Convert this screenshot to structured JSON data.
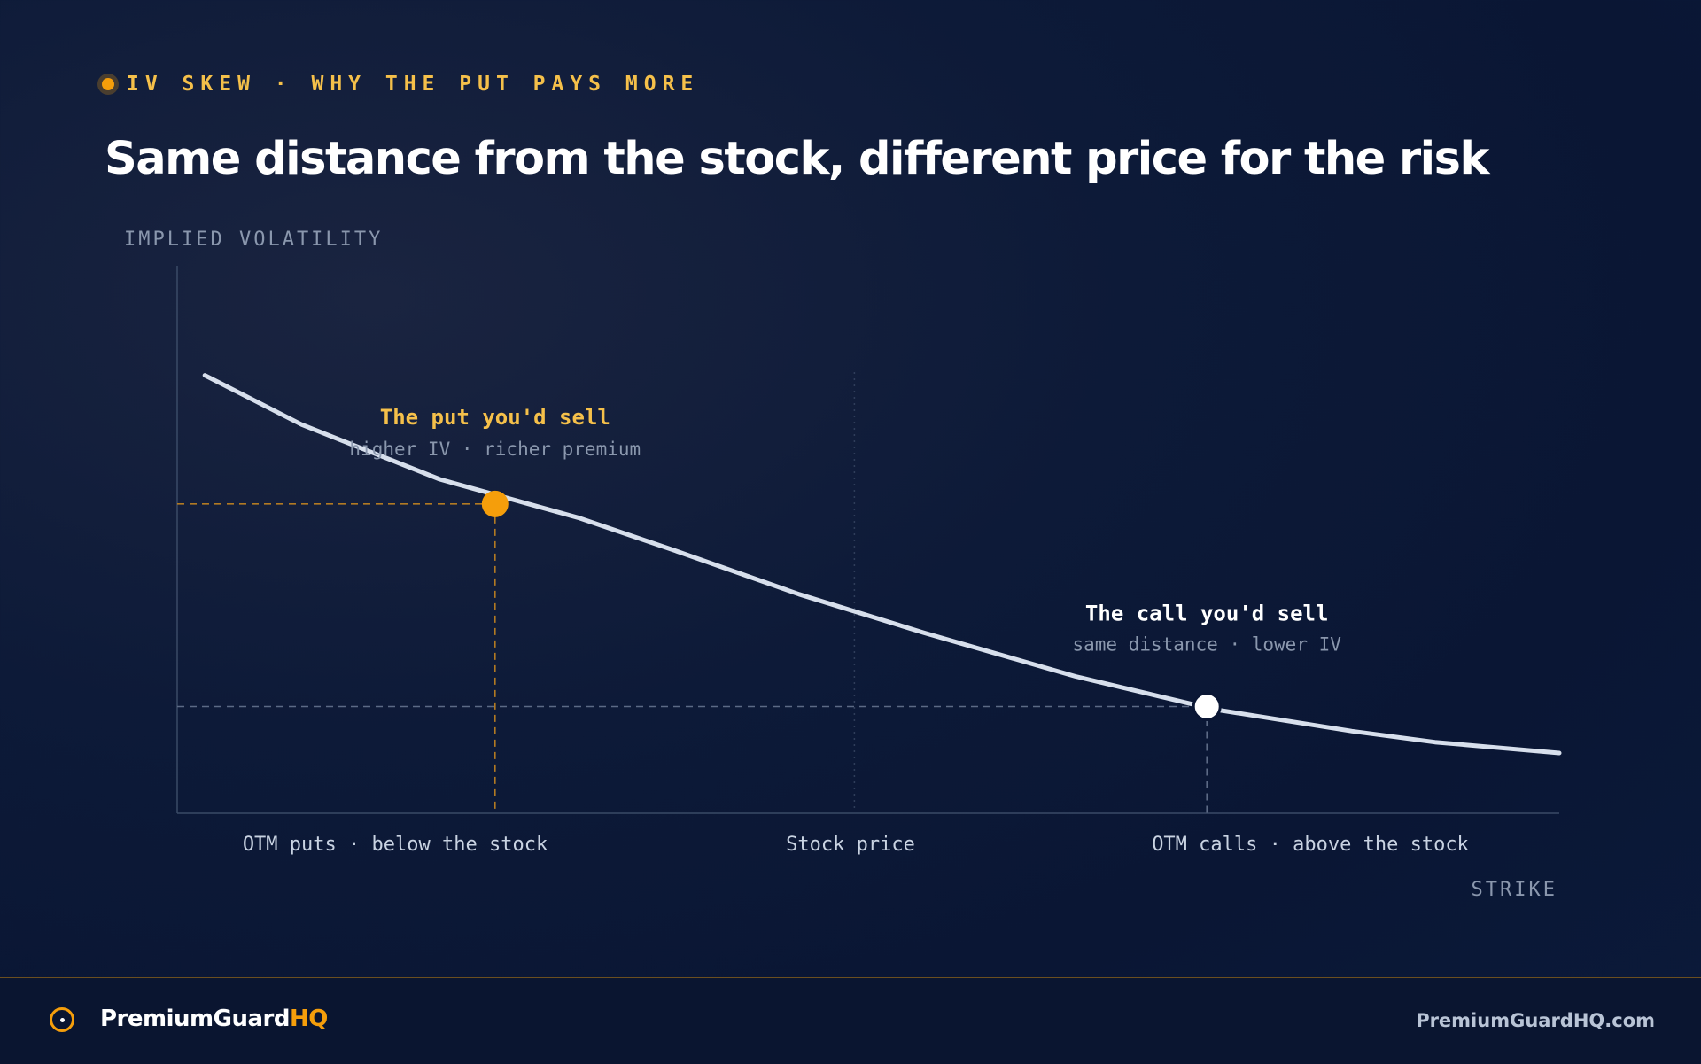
{
  "eyebrow": "IV SKEW · WHY THE PUT PAYS MORE",
  "title": "Same distance from the stock, different price for the risk",
  "colors": {
    "accent": "#f59e0b",
    "accent_text": "#f5c04a",
    "curve": "#d7dfec",
    "muted": "#8a97ad",
    "background": "#0a1634"
  },
  "chart_data": {
    "type": "line",
    "title": "",
    "xlabel": "STRIKE",
    "ylabel": "IMPLIED VOLATILITY",
    "x_categories": [
      "OTM puts · below the stock",
      "Stock price",
      "OTM calls · above the stock"
    ],
    "xlim": [
      0,
      100
    ],
    "ylim": [
      0,
      100
    ],
    "grid": false,
    "series": [
      {
        "x": [
          2,
          9,
          19,
          29,
          36,
          45,
          54,
          65,
          75,
          85,
          91,
          100
        ],
        "y": [
          80,
          71,
          61,
          54,
          48,
          40,
          33,
          25,
          19,
          15,
          13,
          11
        ]
      }
    ],
    "annotations": [
      {
        "label": "The put you'd sell",
        "sublabel": "higher IV · richer premium",
        "x": 23,
        "y": 56.5,
        "style": "put"
      },
      {
        "label": "The call you'd sell",
        "sublabel": "same distance · lower IV",
        "x": 74.5,
        "y": 19.5,
        "style": "call"
      }
    ],
    "stock_price_x": 49
  },
  "footer": {
    "brand_main": "PremiumGuard",
    "brand_accent": "HQ",
    "site": "PremiumGuardHQ.com"
  }
}
